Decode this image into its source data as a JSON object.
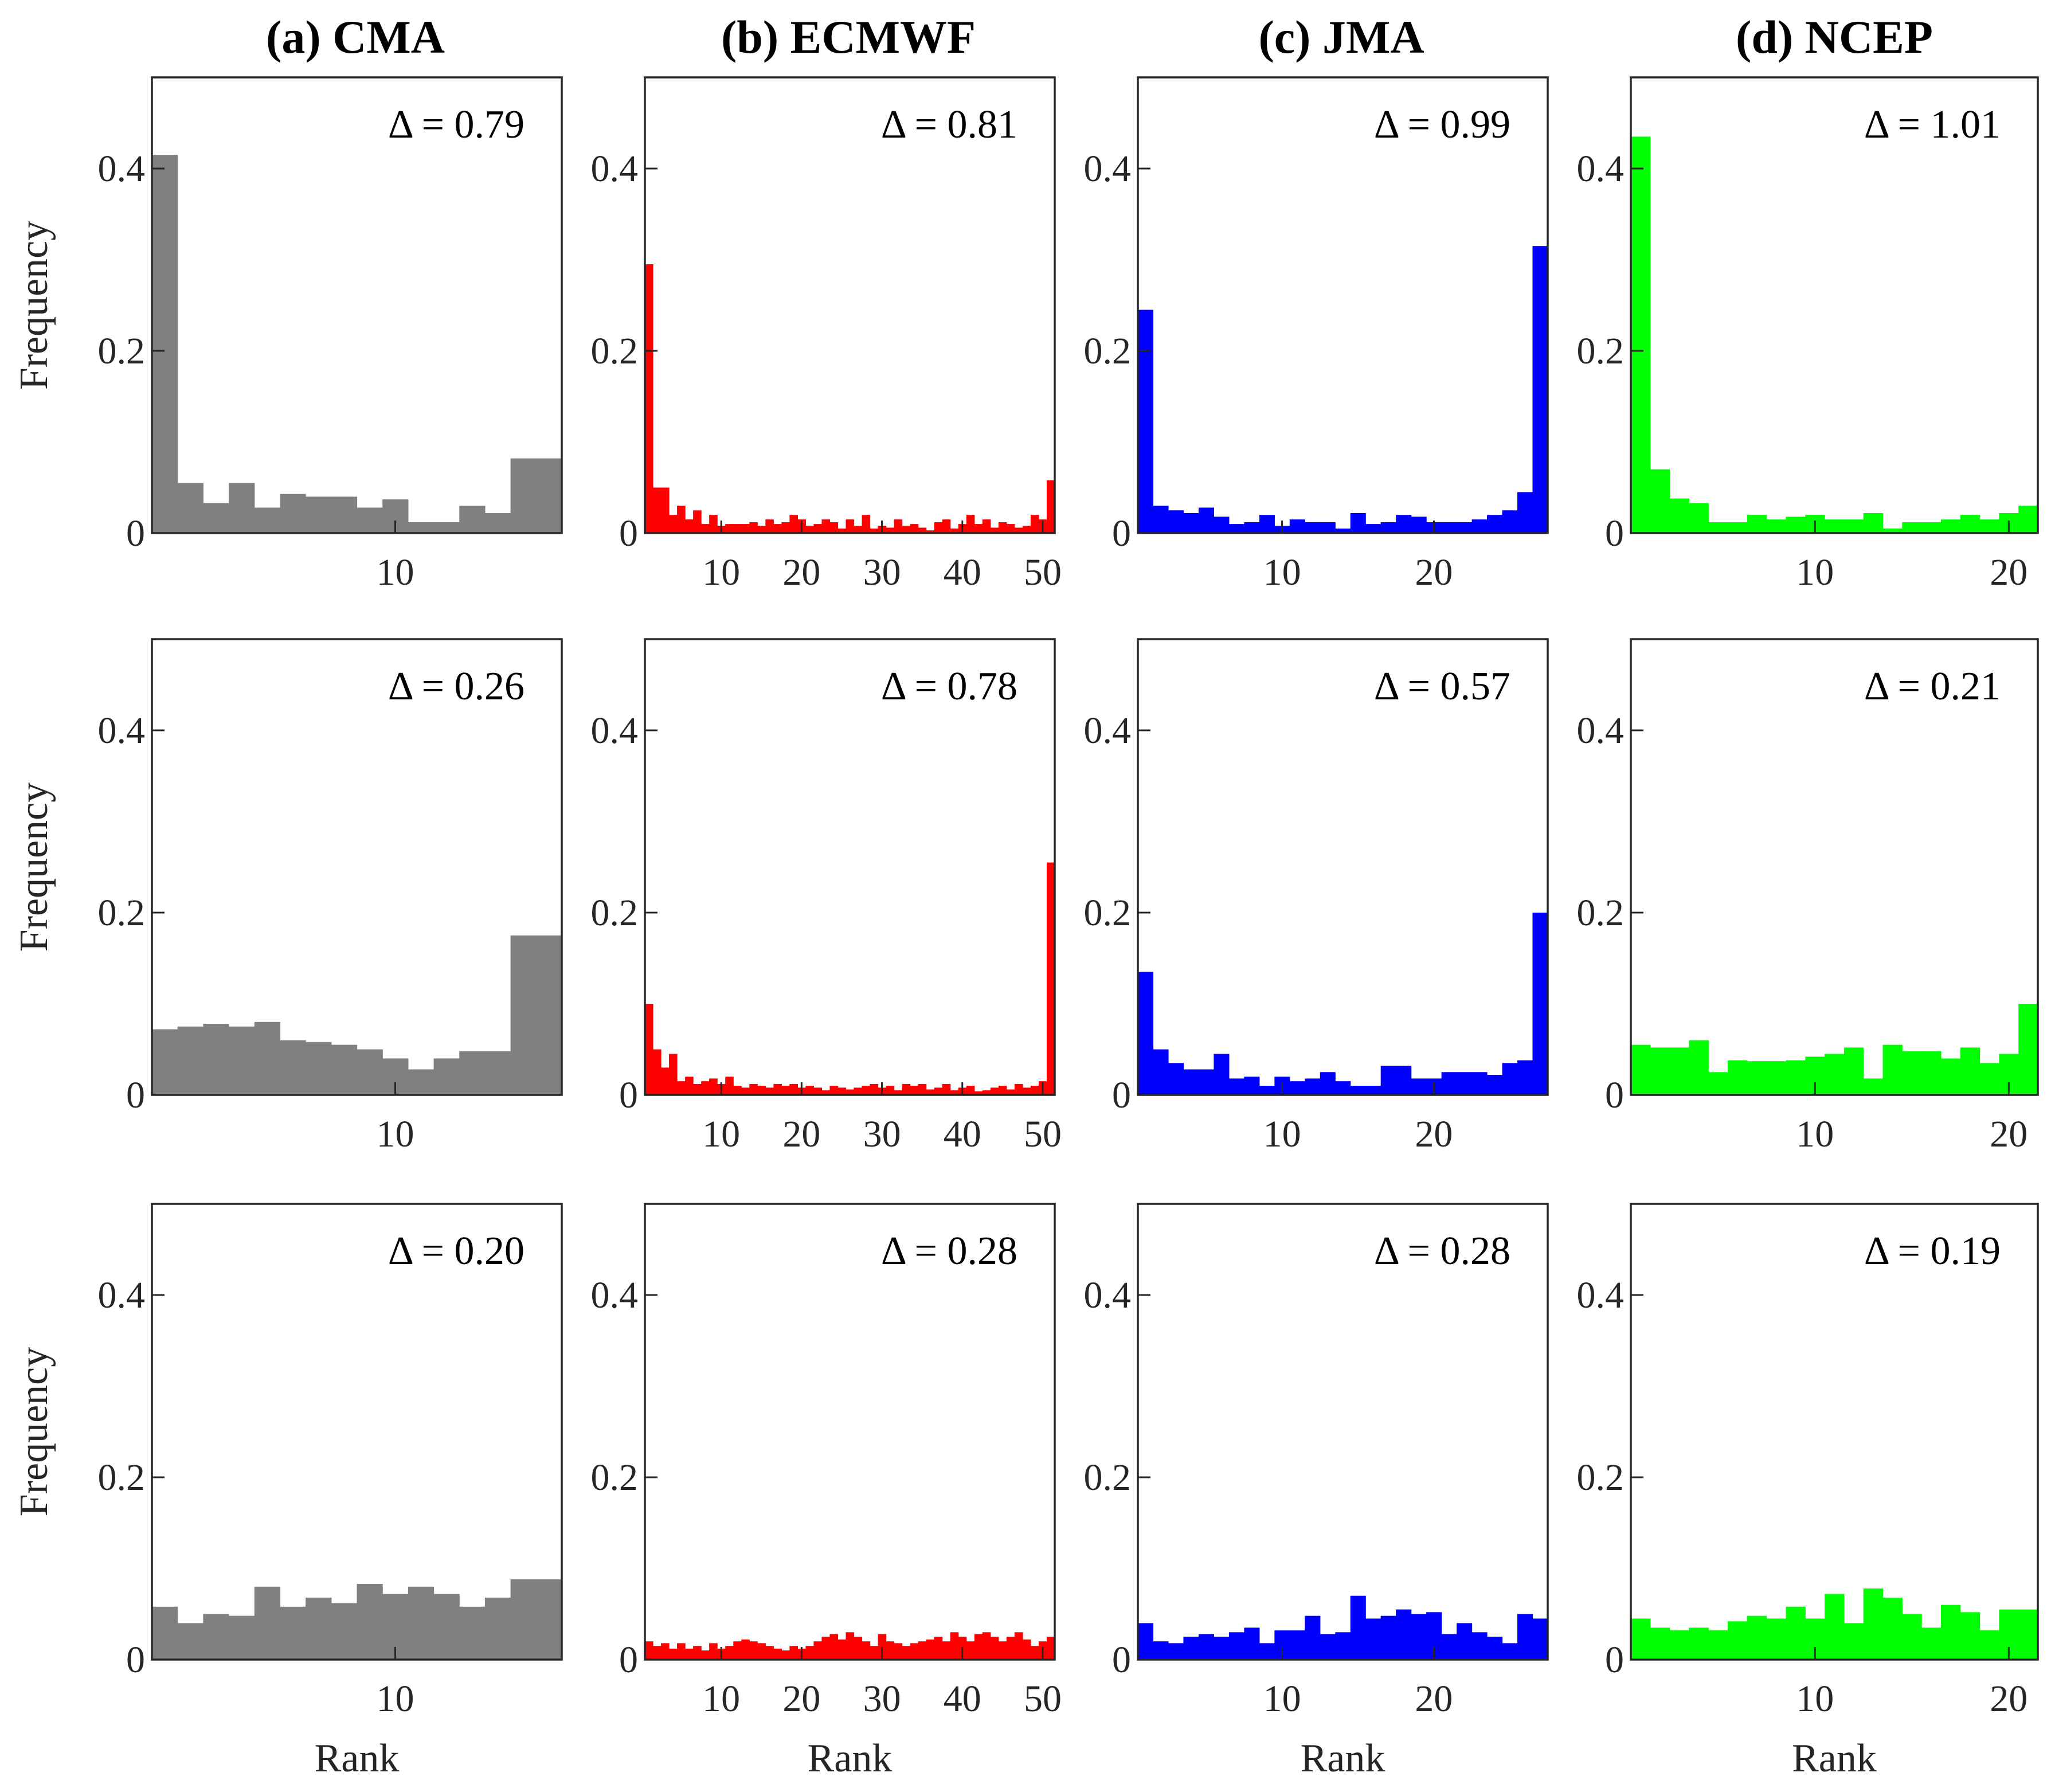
{
  "figure": {
    "column_titles": [
      "(a) CMA",
      "(b) ECMWF",
      "(c) JMA",
      "(d) NCEP"
    ],
    "ylabel": "Frequency",
    "xlabel": "Rank"
  },
  "chart_data": [
    {
      "type": "bar",
      "row": 0,
      "col": 0,
      "title": "(a) CMA",
      "color": "#808080",
      "annotation": "Δ = 0.79",
      "ylim": [
        0,
        0.5
      ],
      "yticks": [
        0,
        0.2,
        0.4
      ],
      "xlim": [
        0.5,
        16.5
      ],
      "xticks": [
        10
      ],
      "ylabel": "Frequency",
      "xlabel": "",
      "x": [
        1,
        2,
        3,
        4,
        5,
        6,
        7,
        8,
        9,
        10,
        11,
        12,
        13,
        14,
        15,
        16
      ],
      "values": [
        0.415,
        0.055,
        0.033,
        0.055,
        0.028,
        0.043,
        0.04,
        0.04,
        0.028,
        0.037,
        0.012,
        0.012,
        0.03,
        0.022,
        0.082,
        0.082
      ]
    },
    {
      "type": "bar",
      "row": 0,
      "col": 1,
      "title": "(b) ECMWF",
      "color": "#ff0000",
      "annotation": "Δ = 0.81",
      "ylim": [
        0,
        0.5
      ],
      "yticks": [
        0,
        0.2,
        0.4
      ],
      "xlim": [
        0.5,
        51.5
      ],
      "xticks": [
        10,
        20,
        30,
        40,
        50
      ],
      "ylabel": "",
      "xlabel": "",
      "x": [
        1,
        2,
        3,
        4,
        5,
        6,
        7,
        8,
        9,
        10,
        11,
        12,
        13,
        14,
        15,
        16,
        17,
        18,
        19,
        20,
        21,
        22,
        23,
        24,
        25,
        26,
        27,
        28,
        29,
        30,
        31,
        32,
        33,
        34,
        35,
        36,
        37,
        38,
        39,
        40,
        41,
        42,
        43,
        44,
        45,
        46,
        47,
        48,
        49,
        50,
        51
      ],
      "values": [
        0.295,
        0.05,
        0.05,
        0.02,
        0.03,
        0.015,
        0.025,
        0.01,
        0.02,
        0.008,
        0.01,
        0.01,
        0.01,
        0.012,
        0.008,
        0.015,
        0.01,
        0.012,
        0.02,
        0.015,
        0.008,
        0.01,
        0.015,
        0.012,
        0.005,
        0.015,
        0.008,
        0.02,
        0.005,
        0.008,
        0.006,
        0.015,
        0.008,
        0.01,
        0.006,
        0.003,
        0.012,
        0.015,
        0.005,
        0.01,
        0.02,
        0.01,
        0.015,
        0.006,
        0.012,
        0.01,
        0.006,
        0.008,
        0.02,
        0.015,
        0.058
      ]
    },
    {
      "type": "bar",
      "row": 0,
      "col": 2,
      "title": "(c) JMA",
      "color": "#0000ff",
      "annotation": "Δ = 0.99",
      "ylim": [
        0,
        0.5
      ],
      "yticks": [
        0,
        0.2,
        0.4
      ],
      "xlim": [
        0.5,
        27.5
      ],
      "xticks": [
        10,
        20
      ],
      "ylabel": "",
      "xlabel": "",
      "x": [
        1,
        2,
        3,
        4,
        5,
        6,
        7,
        8,
        9,
        10,
        11,
        12,
        13,
        14,
        15,
        16,
        17,
        18,
        19,
        20,
        21,
        22,
        23,
        24,
        25,
        26,
        27
      ],
      "values": [
        0.245,
        0.03,
        0.025,
        0.022,
        0.028,
        0.018,
        0.01,
        0.012,
        0.02,
        0.008,
        0.015,
        0.012,
        0.012,
        0.005,
        0.022,
        0.01,
        0.012,
        0.02,
        0.018,
        0.012,
        0.012,
        0.012,
        0.015,
        0.02,
        0.025,
        0.045,
        0.315
      ]
    },
    {
      "type": "bar",
      "row": 0,
      "col": 3,
      "title": "(d) NCEP",
      "color": "#00ff00",
      "annotation": "Δ = 1.01",
      "ylim": [
        0,
        0.5
      ],
      "yticks": [
        0,
        0.2,
        0.4
      ],
      "xlim": [
        0.5,
        21.5
      ],
      "xticks": [
        10,
        20
      ],
      "ylabel": "",
      "xlabel": "",
      "x": [
        1,
        2,
        3,
        4,
        5,
        6,
        7,
        8,
        9,
        10,
        11,
        12,
        13,
        14,
        15,
        16,
        17,
        18,
        19,
        20,
        21
      ],
      "values": [
        0.435,
        0.07,
        0.038,
        0.033,
        0.012,
        0.012,
        0.02,
        0.015,
        0.018,
        0.02,
        0.015,
        0.015,
        0.022,
        0.005,
        0.012,
        0.012,
        0.015,
        0.02,
        0.015,
        0.022,
        0.03
      ]
    },
    {
      "type": "bar",
      "row": 1,
      "col": 0,
      "title": "",
      "color": "#808080",
      "annotation": "Δ = 0.26",
      "ylim": [
        0,
        0.5
      ],
      "yticks": [
        0,
        0.2,
        0.4
      ],
      "xlim": [
        0.5,
        16.5
      ],
      "xticks": [
        10
      ],
      "ylabel": "Frequency",
      "xlabel": "",
      "x": [
        1,
        2,
        3,
        4,
        5,
        6,
        7,
        8,
        9,
        10,
        11,
        12,
        13,
        14,
        15,
        16
      ],
      "values": [
        0.072,
        0.075,
        0.078,
        0.075,
        0.08,
        0.06,
        0.058,
        0.055,
        0.05,
        0.04,
        0.028,
        0.04,
        0.048,
        0.048,
        0.175,
        0.175
      ]
    },
    {
      "type": "bar",
      "row": 1,
      "col": 1,
      "title": "",
      "color": "#ff0000",
      "annotation": "Δ = 0.78",
      "ylim": [
        0,
        0.5
      ],
      "yticks": [
        0,
        0.2,
        0.4
      ],
      "xlim": [
        0.5,
        51.5
      ],
      "xticks": [
        10,
        20,
        30,
        40,
        50
      ],
      "ylabel": "",
      "xlabel": "",
      "x": [
        1,
        2,
        3,
        4,
        5,
        6,
        7,
        8,
        9,
        10,
        11,
        12,
        13,
        14,
        15,
        16,
        17,
        18,
        19,
        20,
        21,
        22,
        23,
        24,
        25,
        26,
        27,
        28,
        29,
        30,
        31,
        32,
        33,
        34,
        35,
        36,
        37,
        38,
        39,
        40,
        41,
        42,
        43,
        44,
        45,
        46,
        47,
        48,
        49,
        50,
        51
      ],
      "values": [
        0.1,
        0.05,
        0.03,
        0.045,
        0.015,
        0.02,
        0.012,
        0.015,
        0.018,
        0.012,
        0.02,
        0.01,
        0.008,
        0.012,
        0.01,
        0.008,
        0.012,
        0.01,
        0.012,
        0.008,
        0.01,
        0.008,
        0.005,
        0.01,
        0.008,
        0.006,
        0.008,
        0.01,
        0.012,
        0.008,
        0.01,
        0.005,
        0.012,
        0.01,
        0.012,
        0.006,
        0.008,
        0.012,
        0.005,
        0.008,
        0.01,
        0.004,
        0.005,
        0.008,
        0.01,
        0.006,
        0.012,
        0.008,
        0.01,
        0.015,
        0.255
      ]
    },
    {
      "type": "bar",
      "row": 1,
      "col": 2,
      "title": "",
      "color": "#0000ff",
      "annotation": "Δ = 0.57",
      "ylim": [
        0,
        0.5
      ],
      "yticks": [
        0,
        0.2,
        0.4
      ],
      "xlim": [
        0.5,
        27.5
      ],
      "xticks": [
        10,
        20
      ],
      "ylabel": "",
      "xlabel": "",
      "x": [
        1,
        2,
        3,
        4,
        5,
        6,
        7,
        8,
        9,
        10,
        11,
        12,
        13,
        14,
        15,
        16,
        17,
        18,
        19,
        20,
        21,
        22,
        23,
        24,
        25,
        26,
        27
      ],
      "values": [
        0.135,
        0.05,
        0.035,
        0.028,
        0.028,
        0.045,
        0.018,
        0.02,
        0.01,
        0.02,
        0.015,
        0.018,
        0.025,
        0.015,
        0.01,
        0.01,
        0.032,
        0.032,
        0.018,
        0.018,
        0.025,
        0.025,
        0.025,
        0.022,
        0.035,
        0.038,
        0.2
      ]
    },
    {
      "type": "bar",
      "row": 1,
      "col": 3,
      "title": "",
      "color": "#00ff00",
      "annotation": "Δ = 0.21",
      "ylim": [
        0,
        0.5
      ],
      "yticks": [
        0,
        0.2,
        0.4
      ],
      "xlim": [
        0.5,
        21.5
      ],
      "xticks": [
        10,
        20
      ],
      "ylabel": "",
      "xlabel": "",
      "x": [
        1,
        2,
        3,
        4,
        5,
        6,
        7,
        8,
        9,
        10,
        11,
        12,
        13,
        14,
        15,
        16,
        17,
        18,
        19,
        20,
        21
      ],
      "values": [
        0.055,
        0.052,
        0.052,
        0.06,
        0.025,
        0.038,
        0.037,
        0.037,
        0.038,
        0.042,
        0.045,
        0.052,
        0.018,
        0.055,
        0.048,
        0.048,
        0.04,
        0.052,
        0.035,
        0.045,
        0.1
      ]
    },
    {
      "type": "bar",
      "row": 2,
      "col": 0,
      "title": "",
      "color": "#808080",
      "annotation": "Δ = 0.20",
      "ylim": [
        0,
        0.5
      ],
      "yticks": [
        0,
        0.2,
        0.4
      ],
      "xlim": [
        0.5,
        16.5
      ],
      "xticks": [
        10
      ],
      "ylabel": "Frequency",
      "xlabel": "Rank",
      "x": [
        1,
        2,
        3,
        4,
        5,
        6,
        7,
        8,
        9,
        10,
        11,
        12,
        13,
        14,
        15,
        16
      ],
      "values": [
        0.058,
        0.04,
        0.05,
        0.048,
        0.08,
        0.058,
        0.068,
        0.062,
        0.083,
        0.072,
        0.08,
        0.072,
        0.058,
        0.068,
        0.088,
        0.088
      ]
    },
    {
      "type": "bar",
      "row": 2,
      "col": 1,
      "title": "",
      "color": "#ff0000",
      "annotation": "Δ = 0.28",
      "ylim": [
        0,
        0.5
      ],
      "yticks": [
        0,
        0.2,
        0.4
      ],
      "xlim": [
        0.5,
        51.5
      ],
      "xticks": [
        10,
        20,
        30,
        40,
        50
      ],
      "ylabel": "",
      "xlabel": "Rank",
      "x": [
        1,
        2,
        3,
        4,
        5,
        6,
        7,
        8,
        9,
        10,
        11,
        12,
        13,
        14,
        15,
        16,
        17,
        18,
        19,
        20,
        21,
        22,
        23,
        24,
        25,
        26,
        27,
        28,
        29,
        30,
        31,
        32,
        33,
        34,
        35,
        36,
        37,
        38,
        39,
        40,
        41,
        42,
        43,
        44,
        45,
        46,
        47,
        48,
        49,
        50,
        51
      ],
      "values": [
        0.02,
        0.015,
        0.018,
        0.012,
        0.018,
        0.012,
        0.015,
        0.01,
        0.018,
        0.012,
        0.015,
        0.02,
        0.022,
        0.02,
        0.018,
        0.015,
        0.012,
        0.01,
        0.015,
        0.012,
        0.015,
        0.02,
        0.025,
        0.028,
        0.022,
        0.03,
        0.025,
        0.02,
        0.015,
        0.028,
        0.02,
        0.018,
        0.015,
        0.018,
        0.02,
        0.022,
        0.025,
        0.02,
        0.03,
        0.025,
        0.02,
        0.028,
        0.03,
        0.025,
        0.02,
        0.025,
        0.03,
        0.022,
        0.015,
        0.02,
        0.025
      ]
    },
    {
      "type": "bar",
      "row": 2,
      "col": 2,
      "title": "",
      "color": "#0000ff",
      "annotation": "Δ = 0.28",
      "ylim": [
        0,
        0.5
      ],
      "yticks": [
        0,
        0.2,
        0.4
      ],
      "xlim": [
        0.5,
        27.5
      ],
      "xticks": [
        10,
        20
      ],
      "ylabel": "",
      "xlabel": "Rank",
      "x": [
        1,
        2,
        3,
        4,
        5,
        6,
        7,
        8,
        9,
        10,
        11,
        12,
        13,
        14,
        15,
        16,
        17,
        18,
        19,
        20,
        21,
        22,
        23,
        24,
        25,
        26,
        27
      ],
      "values": [
        0.04,
        0.02,
        0.018,
        0.025,
        0.028,
        0.025,
        0.03,
        0.035,
        0.018,
        0.032,
        0.032,
        0.048,
        0.028,
        0.03,
        0.07,
        0.045,
        0.048,
        0.055,
        0.05,
        0.052,
        0.028,
        0.04,
        0.03,
        0.025,
        0.018,
        0.05,
        0.045
      ]
    },
    {
      "type": "bar",
      "row": 2,
      "col": 3,
      "title": "",
      "color": "#00ff00",
      "annotation": "Δ = 0.19",
      "ylim": [
        0,
        0.5
      ],
      "yticks": [
        0,
        0.2,
        0.4
      ],
      "xlim": [
        0.5,
        21.5
      ],
      "xticks": [
        10,
        20
      ],
      "ylabel": "",
      "xlabel": "Rank",
      "x": [
        1,
        2,
        3,
        4,
        5,
        6,
        7,
        8,
        9,
        10,
        11,
        12,
        13,
        14,
        15,
        16,
        17,
        18,
        19,
        20,
        21
      ],
      "values": [
        0.045,
        0.035,
        0.032,
        0.035,
        0.032,
        0.042,
        0.048,
        0.045,
        0.058,
        0.045,
        0.072,
        0.04,
        0.078,
        0.068,
        0.05,
        0.035,
        0.06,
        0.052,
        0.032,
        0.055,
        0.055
      ]
    }
  ]
}
